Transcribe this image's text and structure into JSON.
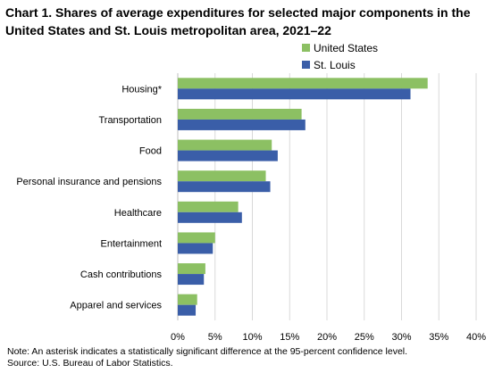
{
  "chart_title": "Chart 1. Shares of average expenditures for selected major components in the United States and St. Louis metropolitan area, 2021–22",
  "colors": {
    "us": "#8cc063",
    "stl": "#3a5ea8",
    "grid": "#d9d9d9",
    "axis": "#bfbfbf"
  },
  "chart_data": {
    "type": "bar",
    "orientation": "horizontal",
    "categories": [
      "Housing*",
      "Transportation",
      "Food",
      "Personal insurance and pensions",
      "Healthcare",
      "Entertainment",
      "Cash contributions",
      "Apparel and services"
    ],
    "series": [
      {
        "name": "United States",
        "values": [
          33.5,
          16.6,
          12.6,
          11.8,
          8.1,
          5.0,
          3.7,
          2.6
        ]
      },
      {
        "name": "St. Louis",
        "values": [
          31.2,
          17.1,
          13.4,
          12.4,
          8.6,
          4.7,
          3.5,
          2.4
        ]
      }
    ],
    "xlim": [
      0,
      40
    ],
    "xticks": [
      "0%",
      "5%",
      "10%",
      "15%",
      "20%",
      "25%",
      "30%",
      "35%",
      "40%"
    ],
    "grid": "vertical",
    "legend_position": "top-right"
  },
  "notes": {
    "note": "Note: An asterisk indicates a statistically significant difference at the 95-percent confidence level.",
    "source": "Source: U.S. Bureau of Labor Statistics."
  }
}
